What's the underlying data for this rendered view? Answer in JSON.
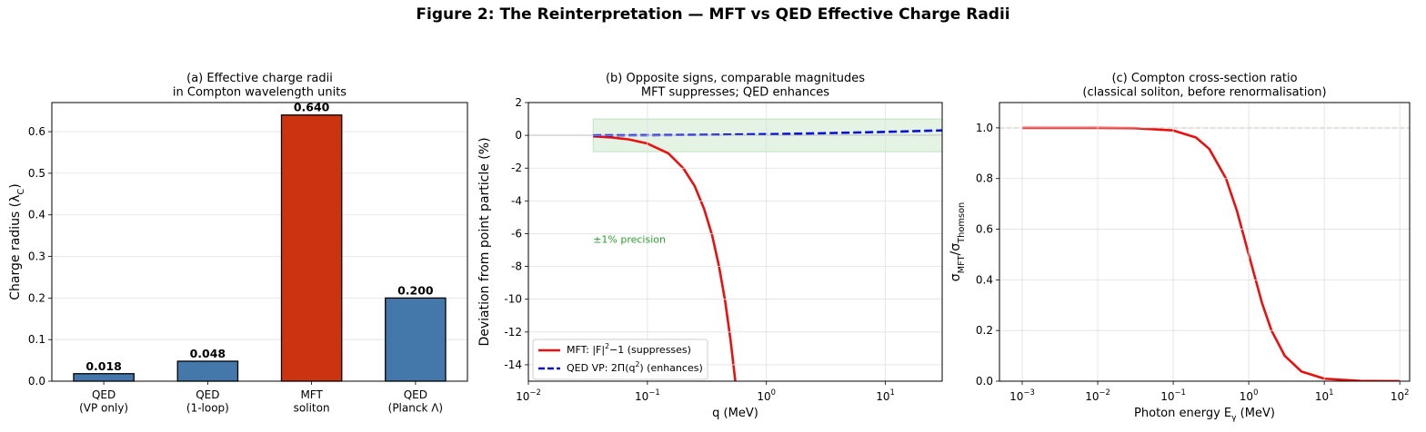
{
  "title": "Figure 2: The Reinterpretation — MFT vs QED Effective Charge Radii",
  "chart_data": [
    {
      "type": "bar",
      "title": "(a) Effective charge radii\nin Compton wavelength units",
      "ylabel": "Charge radius (λ_{C})",
      "categories": [
        "QED\n(VP only)",
        "QED\n(1-loop)",
        "MFT\nsoliton",
        "QED\n(Planck Λ)"
      ],
      "values": [
        0.018,
        0.048,
        0.64,
        0.2
      ],
      "value_labels": [
        "0.018",
        "0.048",
        "0.640",
        "0.200"
      ],
      "colors": [
        "#4477aa",
        "#4477aa",
        "#cc3311",
        "#4477aa"
      ],
      "ylim": [
        0,
        0.67
      ],
      "yticks": [
        {
          "value": 0,
          "label": "0.0"
        },
        0.1,
        0.2,
        0.3,
        0.4,
        0.5,
        0.6
      ],
      "grid": true
    },
    {
      "type": "line",
      "title": "(b) Opposite signs, comparable magnitudes\nMFT suppresses; QED enhances",
      "xlabel": "q (MeV)",
      "ylabel": "Deviation from point particle (%)",
      "xscale": "log",
      "xlim": [
        0.01,
        30
      ],
      "xticks": [
        {
          "value": 0.01,
          "label": "10^{−2}"
        },
        {
          "value": 0.1,
          "label": "10^{−1}"
        },
        {
          "value": 1,
          "label": "10^{0}"
        },
        {
          "value": 10,
          "label": "10^{1}"
        }
      ],
      "ylim": [
        -15,
        2
      ],
      "yticks": [
        -14,
        -12,
        -10,
        -8,
        -6,
        -4,
        -2,
        0,
        2
      ],
      "grid": true,
      "legend": "lower left",
      "hline": {
        "y": 0,
        "color": "#777777",
        "linestyle": "solid"
      },
      "band": {
        "x": [
          0.035,
          30
        ],
        "y": [
          -1,
          1
        ],
        "color": "#2ca02c"
      },
      "annotation": {
        "text": "±1% precision",
        "x": 0.035,
        "y": -6.4,
        "color": "#2ca02c"
      },
      "series": [
        {
          "name": "MFT: |F|^{2}−1 (suppresses)",
          "color": "#e8110f",
          "linestyle": "solid",
          "x": [
            0.035,
            0.05,
            0.07,
            0.1,
            0.15,
            0.2,
            0.25,
            0.3,
            0.35,
            0.4,
            0.45,
            0.5,
            0.55
          ],
          "values": [
            -0.06,
            -0.13,
            -0.25,
            -0.5,
            -1.1,
            -2.0,
            -3.1,
            -4.5,
            -6.1,
            -8.0,
            -10.1,
            -12.5,
            -15.1
          ]
        },
        {
          "name": "QED VP: 2Π(q^{2}) (enhances)",
          "color": "#0a12d4",
          "linestyle": "dashed",
          "x": [
            0.035,
            0.1,
            0.3,
            1,
            3,
            10,
            30
          ],
          "values": [
            0,
            0.01,
            0.03,
            0.07,
            0.13,
            0.21,
            0.3
          ]
        }
      ]
    },
    {
      "type": "line",
      "title": "(c) Compton cross-section ratio\n(classical soliton, before renormalisation)",
      "xlabel": "Photon energy E_{γ} (MeV)",
      "ylabel": "σ_{MFT}/σ_{Thomson}",
      "xscale": "log",
      "xlim": [
        0.0005,
        135
      ],
      "xticks": [
        {
          "value": 0.001,
          "label": "10^{−3}"
        },
        {
          "value": 0.01,
          "label": "10^{−2}"
        },
        {
          "value": 0.1,
          "label": "10^{−1}"
        },
        {
          "value": 1,
          "label": "10^{0}"
        },
        {
          "value": 10,
          "label": "10^{1}"
        },
        {
          "value": 100,
          "label": "10^{2}"
        }
      ],
      "ylim": [
        0,
        1.1
      ],
      "yticks": [
        {
          "value": 0,
          "label": "0.0"
        },
        0.2,
        0.4,
        0.6,
        0.8,
        {
          "value": 1,
          "label": "1.0"
        }
      ],
      "grid": true,
      "hline": {
        "y": 1,
        "color": "#a08060",
        "linestyle": "dashed"
      },
      "series": [
        {
          "color": "#e8110f",
          "linestyle": "solid",
          "x": [
            0.001,
            0.01,
            0.03,
            0.1,
            0.2,
            0.3,
            0.5,
            0.7,
            1,
            1.5,
            2,
            3,
            5,
            10,
            30,
            100
          ],
          "values": [
            1,
            1,
            0.999,
            0.99,
            0.962,
            0.917,
            0.8,
            0.671,
            0.5,
            0.308,
            0.2,
            0.1,
            0.038,
            0.0099,
            0.0011,
            0.0001
          ]
        }
      ]
    }
  ]
}
